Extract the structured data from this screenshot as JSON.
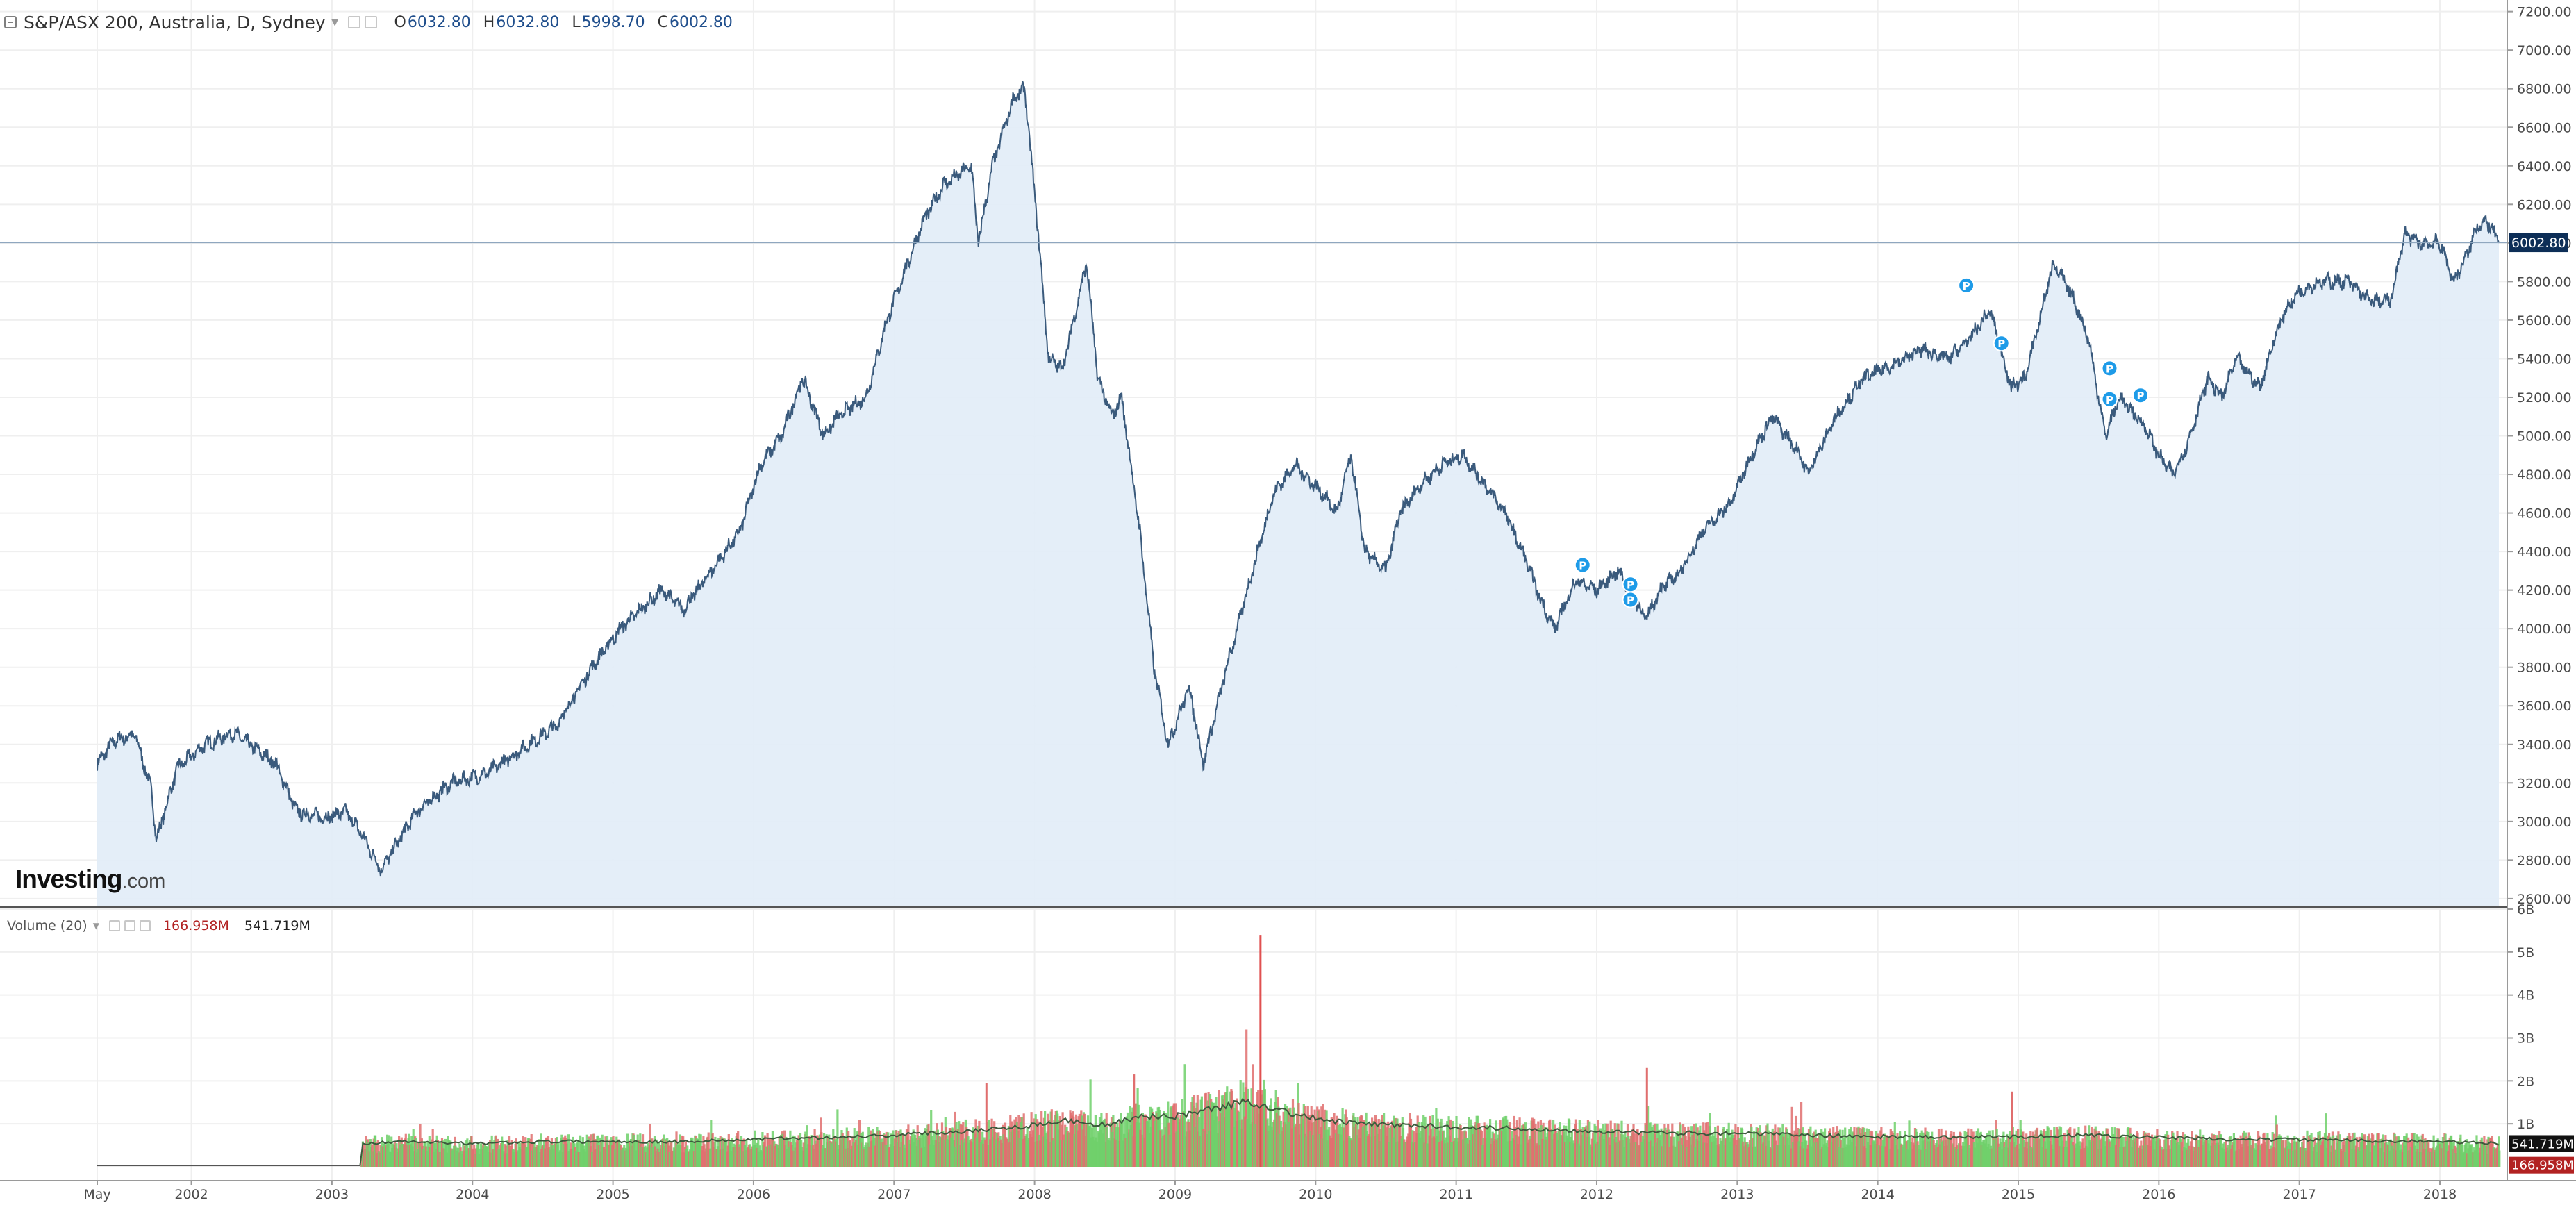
{
  "header": {
    "title": "S&P/ASX 200, Australia, D, Sydney",
    "ohlc": [
      {
        "key": "O",
        "value": "6032.80"
      },
      {
        "key": "H",
        "value": "6032.80"
      },
      {
        "key": "L",
        "value": "5998.70"
      },
      {
        "key": "C",
        "value": "6002.80"
      }
    ]
  },
  "logo": {
    "main": "Investing",
    "suffix": ".com"
  },
  "volume_legend": {
    "label": "Volume (20)",
    "value_1": "166.958M",
    "value_2": "541.719M"
  },
  "colors": {
    "line": "#3a5a7c",
    "area": "#e1ecf7",
    "grid": "#efefef",
    "divider": "#555555",
    "price_tag": "#0d2e57",
    "volume_up": "#6fd06a",
    "volume_down": "#e06e6e",
    "volume_ma": "#3d5a3d",
    "event_marker": "#1e9be8",
    "value_1_color": "#b22222"
  },
  "chart_data": [
    {
      "type": "area",
      "title": "S&P/ASX 200, Australia, D, Sydney",
      "xlabel": "",
      "ylabel": "",
      "x_ticks": [
        "May",
        "2002",
        "2003",
        "2004",
        "2005",
        "2006",
        "2007",
        "2008",
        "2009",
        "2010",
        "2011",
        "2012",
        "2013",
        "2014",
        "2015",
        "2016",
        "2017",
        "2018"
      ],
      "xlim": [
        2001.33,
        2018.42
      ],
      "ylim": [
        2560,
        7260
      ],
      "y_ticks": [
        2600,
        2800,
        3000,
        3200,
        3400,
        3600,
        3800,
        4000,
        4200,
        4400,
        4600,
        4800,
        5000,
        5200,
        5400,
        5600,
        5800,
        6000,
        6200,
        6400,
        6600,
        6800,
        7000,
        7200
      ],
      "y_tick_labels": [
        "2600.00",
        "2800.00",
        "3000.00",
        "3200.00",
        "3400.00",
        "3600.00",
        "3800.00",
        "4000.00",
        "4200.00",
        "4400.00",
        "4600.00",
        "4800.00",
        "5000.00",
        "5200.00",
        "5400.00",
        "5600.00",
        "5800.00",
        "6000.00",
        "6200.00",
        "6400.00",
        "6600.00",
        "6800.00",
        "7000.00",
        "7200.00"
      ],
      "grid": true,
      "last_price_label": "6002.80",
      "last_price": 6002.8,
      "series": [
        {
          "x": [
            2001.33,
            2001.45,
            2001.6,
            2001.72,
            2001.75,
            2001.9,
            2002.1,
            2002.3,
            2002.45,
            2002.6,
            2002.75,
            2002.95,
            2003.1,
            2003.2,
            2003.35,
            2003.6,
            2003.85,
            2004.1,
            2004.3,
            2004.6,
            2004.85,
            2005.05,
            2005.2,
            2005.35,
            2005.5,
            2005.7,
            2005.9,
            2006.05,
            2006.2,
            2006.35,
            2006.5,
            2006.6,
            2006.8,
            2006.95,
            2007.1,
            2007.2,
            2007.35,
            2007.55,
            2007.6,
            2007.7,
            2007.85,
            2007.93,
            2008.02,
            2008.1,
            2008.2,
            2008.37,
            2008.45,
            2008.55,
            2008.62,
            2008.75,
            2008.85,
            2008.95,
            2009.1,
            2009.2,
            2009.35,
            2009.55,
            2009.7,
            2009.85,
            2010.05,
            2010.15,
            2010.25,
            2010.35,
            2010.5,
            2010.6,
            2010.75,
            2010.9,
            2011.05,
            2011.2,
            2011.35,
            2011.5,
            2011.6,
            2011.7,
            2011.85,
            2012.0,
            2012.15,
            2012.35,
            2012.45,
            2012.6,
            2012.75,
            2012.95,
            2013.1,
            2013.25,
            2013.45,
            2013.5,
            2013.7,
            2013.9,
            2014.05,
            2014.2,
            2014.3,
            2014.5,
            2014.65,
            2014.8,
            2014.95,
            2015.05,
            2015.15,
            2015.25,
            2015.4,
            2015.5,
            2015.62,
            2015.72,
            2015.9,
            2016.0,
            2016.1,
            2016.2,
            2016.35,
            2016.45,
            2016.55,
            2016.72,
            2016.82,
            2016.9,
            2017.0,
            2017.15,
            2017.35,
            2017.5,
            2017.65,
            2017.75,
            2017.85,
            2018.0,
            2018.1,
            2018.2,
            2018.27,
            2018.35,
            2018.42
          ],
          "values": [
            3300,
            3420,
            3450,
            3150,
            2900,
            3280,
            3400,
            3460,
            3380,
            3300,
            3050,
            3020,
            3050,
            2950,
            2750,
            3050,
            3200,
            3250,
            3350,
            3500,
            3800,
            4000,
            4100,
            4200,
            4100,
            4300,
            4500,
            4850,
            5000,
            5300,
            5000,
            5100,
            5200,
            5600,
            5900,
            6100,
            6300,
            6400,
            6000,
            6400,
            6750,
            6800,
            6100,
            5400,
            5350,
            5900,
            5300,
            5100,
            5200,
            4500,
            3800,
            3400,
            3700,
            3300,
            3750,
            4300,
            4700,
            4850,
            4700,
            4600,
            4900,
            4400,
            4300,
            4600,
            4750,
            4850,
            4900,
            4750,
            4600,
            4350,
            4150,
            4000,
            4250,
            4200,
            4300,
            4050,
            4200,
            4300,
            4500,
            4650,
            4900,
            5100,
            4900,
            4800,
            5100,
            5300,
            5350,
            5400,
            5450,
            5400,
            5500,
            5650,
            5250,
            5300,
            5600,
            5900,
            5700,
            5500,
            5000,
            5200,
            5050,
            4900,
            4800,
            4950,
            5300,
            5200,
            5400,
            5250,
            5500,
            5650,
            5750,
            5800,
            5800,
            5700,
            5700,
            6050,
            6000,
            6000,
            5800,
            5950,
            6100,
            6100,
            6000
          ]
        }
      ],
      "event_markers": [
        {
          "x": 2011.9,
          "value": 4330
        },
        {
          "x": 2012.24,
          "value": 4230
        },
        {
          "x": 2012.24,
          "value": 4150
        },
        {
          "x": 2014.63,
          "value": 5780
        },
        {
          "x": 2014.88,
          "value": 5480
        },
        {
          "x": 2015.65,
          "value": 5350
        },
        {
          "x": 2015.65,
          "value": 5190
        },
        {
          "x": 2015.87,
          "value": 5210
        }
      ]
    },
    {
      "type": "bar",
      "title": "Volume (20)",
      "xlabel": "",
      "ylabel": "",
      "xlim": [
        2001.33,
        2018.42
      ],
      "ylim": [
        0,
        6
      ],
      "y_ticks": [
        1,
        2,
        3,
        4,
        5,
        6
      ],
      "y_tick_labels": [
        "1B",
        "2B",
        "3B",
        "4B",
        "5B",
        "6B"
      ],
      "unit": "billions",
      "grid": true,
      "value_1_label": "166.958M",
      "value_1": 0.167,
      "value_2_label": "541.719M",
      "value_2": 0.542,
      "series": [
        {
          "x": [
            2001.33,
            2003.2,
            2003.21,
            2003.5,
            2004.0,
            2004.5,
            2005.0,
            2005.5,
            2006.0,
            2006.5,
            2007.0,
            2007.5,
            2007.9,
            2008.2,
            2008.5,
            2008.8,
            2009.0,
            2009.3,
            2009.5,
            2009.65,
            2009.9,
            2010.2,
            2010.5,
            2011.0,
            2011.5,
            2012.0,
            2012.5,
            2013.0,
            2013.5,
            2014.0,
            2014.5,
            2015.0,
            2015.5,
            2016.0,
            2016.5,
            2017.0,
            2017.5,
            2018.0,
            2018.42
          ],
          "values": [
            0.03,
            0.03,
            0.55,
            0.6,
            0.55,
            0.6,
            0.6,
            0.6,
            0.65,
            0.7,
            0.75,
            0.85,
            0.95,
            1.1,
            1.0,
            1.2,
            1.2,
            1.4,
            1.55,
            1.45,
            1.2,
            1.05,
            1.0,
            0.95,
            0.9,
            0.85,
            0.8,
            0.8,
            0.75,
            0.72,
            0.7,
            0.72,
            0.75,
            0.7,
            0.65,
            0.65,
            0.62,
            0.6,
            0.55
          ]
        }
      ],
      "spikes": [
        {
          "x": 2009.6,
          "value": 5.4
        },
        {
          "x": 2007.65,
          "value": 1.95
        },
        {
          "x": 2008.7,
          "value": 2.15
        },
        {
          "x": 2012.35,
          "value": 2.3
        },
        {
          "x": 2014.95,
          "value": 1.75
        }
      ]
    }
  ]
}
